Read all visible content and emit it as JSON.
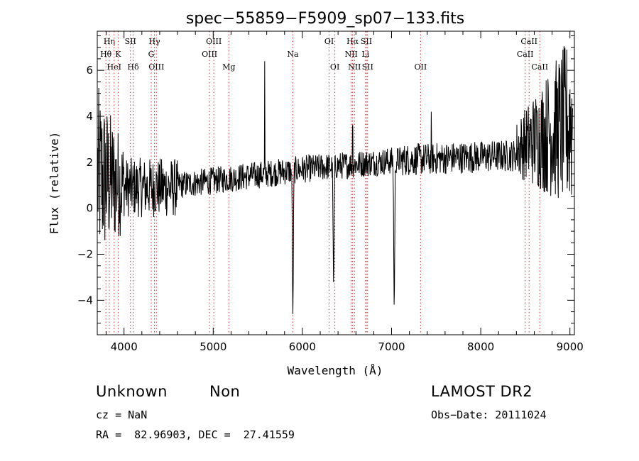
{
  "chart_data": {
    "type": "line",
    "title": "spec−55859−F5909_sp07−133.fits",
    "xlabel": "Wavelength (Å)",
    "ylabel": "Flux (relative)",
    "xlim": [
      3700,
      9050
    ],
    "ylim": [
      -5.5,
      7.7
    ],
    "xticks": [
      {
        "value": 4000,
        "label": "4000"
      },
      {
        "value": 5000,
        "label": "5000"
      },
      {
        "value": 6000,
        "label": "6000"
      },
      {
        "value": 7000,
        "label": "7000"
      },
      {
        "value": 8000,
        "label": "8000"
      },
      {
        "value": 9000,
        "label": "9000"
      }
    ],
    "yticks": [
      {
        "value": -4,
        "label": "−4"
      },
      {
        "value": -2,
        "label": "−2"
      },
      {
        "value": 0,
        "label": "0"
      },
      {
        "value": 2,
        "label": "2"
      },
      {
        "value": 4,
        "label": "4"
      },
      {
        "value": 6,
        "label": "6"
      }
    ],
    "line_color": "#000000",
    "marker_color": "#cc3333",
    "lines": [
      {
        "label": "Hη",
        "wavelength": 3835,
        "row": 0
      },
      {
        "label": "Hθ",
        "wavelength": 3797,
        "row": 1
      },
      {
        "label": "K",
        "wavelength": 3934,
        "row": 1
      },
      {
        "label": "HeI",
        "wavelength": 3889,
        "row": 2
      },
      {
        "label": "Hδ",
        "wavelength": 4102,
        "row": 2
      },
      {
        "label": "SII",
        "wavelength": 4072,
        "row": 0
      },
      {
        "label": "Hγ",
        "wavelength": 4341,
        "row": 0
      },
      {
        "label": "G",
        "wavelength": 4305,
        "row": 1
      },
      {
        "label": "OIII",
        "wavelength": 4363,
        "row": 2
      },
      {
        "label": "OIII",
        "wavelength": 5007,
        "row": 0
      },
      {
        "label": "OIII",
        "wavelength": 4959,
        "row": 1
      },
      {
        "label": "Mg",
        "wavelength": 5175,
        "row": 2
      },
      {
        "label": "Na",
        "wavelength": 5893,
        "row": 1
      },
      {
        "label": "OI",
        "wavelength": 6300,
        "row": 0
      },
      {
        "label": "OI",
        "wavelength": 6364,
        "row": 2
      },
      {
        "label": "Hα",
        "wavelength": 6563,
        "row": 0
      },
      {
        "label": "SII",
        "wavelength": 6717,
        "row": 0
      },
      {
        "label": "NII",
        "wavelength": 6548,
        "row": 1
      },
      {
        "label": "Li",
        "wavelength": 6708,
        "row": 1
      },
      {
        "label": "NII",
        "wavelength": 6584,
        "row": 2
      },
      {
        "label": "SII",
        "wavelength": 6731,
        "row": 2
      },
      {
        "label": "OII",
        "wavelength": 7325,
        "row": 2
      },
      {
        "label": "CaII",
        "wavelength": 8542,
        "row": 0
      },
      {
        "label": "CaII",
        "wavelength": 8498,
        "row": 1
      },
      {
        "label": "CaII",
        "wavelength": 8662,
        "row": 2
      }
    ],
    "absorption_features": [
      {
        "wavelength": 5893,
        "depth": -4.6
      },
      {
        "wavelength": 6350,
        "depth": -3.3
      },
      {
        "wavelength": 7030,
        "depth": -4.3
      }
    ],
    "spikes": [
      {
        "wavelength": 5577,
        "value": 6.4
      },
      {
        "wavelength": 6563,
        "value": 3.6
      },
      {
        "wavelength": 7445,
        "value": 4.2
      }
    ]
  },
  "info": {
    "class": "Unknown",
    "subclass": "Non",
    "survey": "LAMOST DR2",
    "cz": "cz = NaN",
    "obs_date": "Obs−Date: 20111024",
    "coords": "RA =  82.96903, DEC =  27.41559"
  }
}
